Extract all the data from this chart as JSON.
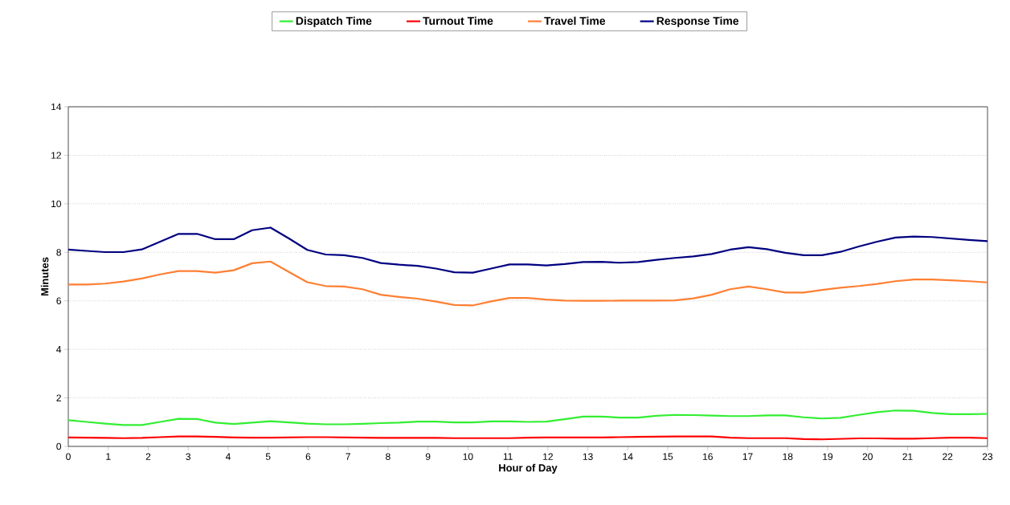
{
  "chart_data": {
    "type": "line",
    "xlabel": "Hour of Day",
    "ylabel": "Minutes",
    "x": [
      0,
      0.46,
      0.92,
      1.38,
      1.84,
      2.3,
      2.76,
      3.22,
      3.68,
      4.14,
      4.6,
      5.06,
      5.52,
      5.98,
      6.44,
      6.9,
      7.36,
      7.82,
      8.28,
      8.74,
      9.2,
      9.66,
      10.12,
      10.58,
      11.04,
      11.5,
      11.96,
      12.42,
      12.88,
      13.34,
      13.8,
      14.26,
      14.72,
      15.18,
      15.64,
      16.1,
      16.56,
      17.02,
      17.48,
      17.94,
      18.4,
      18.86,
      19.32,
      19.78,
      20.24,
      20.7,
      21.16,
      21.62,
      22.08,
      22.54,
      23
    ],
    "series": [
      {
        "name": "Dispatch Time",
        "color": "#33ee33",
        "values": [
          1.08,
          1.01,
          0.94,
          0.88,
          0.88,
          1.01,
          1.14,
          1.13,
          0.98,
          0.92,
          0.98,
          1.04,
          0.99,
          0.94,
          0.91,
          0.91,
          0.93,
          0.96,
          0.98,
          1.02,
          1.02,
          0.99,
          0.99,
          1.03,
          1.03,
          1.01,
          1.02,
          1.12,
          1.23,
          1.23,
          1.19,
          1.19,
          1.26,
          1.3,
          1.29,
          1.27,
          1.25,
          1.25,
          1.28,
          1.28,
          1.2,
          1.15,
          1.18,
          1.3,
          1.41,
          1.48,
          1.47,
          1.38,
          1.33,
          1.33,
          1.34
        ]
      },
      {
        "name": "Turnout Time",
        "color": "#ff0000",
        "values": [
          0.37,
          0.36,
          0.35,
          0.34,
          0.35,
          0.38,
          0.41,
          0.41,
          0.39,
          0.37,
          0.36,
          0.36,
          0.37,
          0.38,
          0.38,
          0.37,
          0.36,
          0.35,
          0.35,
          0.35,
          0.35,
          0.34,
          0.34,
          0.34,
          0.34,
          0.36,
          0.37,
          0.37,
          0.37,
          0.37,
          0.38,
          0.39,
          0.4,
          0.41,
          0.41,
          0.41,
          0.36,
          0.34,
          0.34,
          0.34,
          0.3,
          0.29,
          0.31,
          0.33,
          0.33,
          0.32,
          0.32,
          0.34,
          0.36,
          0.36,
          0.34
        ]
      },
      {
        "name": "Travel Time",
        "color": "#ff7f33",
        "values": [
          6.67,
          6.67,
          6.71,
          6.8,
          6.92,
          7.09,
          7.23,
          7.23,
          7.16,
          7.26,
          7.55,
          7.62,
          7.19,
          6.77,
          6.61,
          6.59,
          6.48,
          6.25,
          6.16,
          6.09,
          5.97,
          5.83,
          5.81,
          5.98,
          6.12,
          6.12,
          6.05,
          6.01,
          6.0,
          6.0,
          6.01,
          6.01,
          6.01,
          6.02,
          6.1,
          6.25,
          6.48,
          6.59,
          6.48,
          6.34,
          6.34,
          6.45,
          6.54,
          6.61,
          6.7,
          6.81,
          6.88,
          6.88,
          6.85,
          6.81,
          6.76
        ]
      },
      {
        "name": "Response Time",
        "color": "#000080",
        "values": [
          8.11,
          8.06,
          8.01,
          8.01,
          8.12,
          8.44,
          8.76,
          8.76,
          8.54,
          8.54,
          8.91,
          9.02,
          8.57,
          8.1,
          7.91,
          7.88,
          7.77,
          7.56,
          7.49,
          7.44,
          7.33,
          7.18,
          7.16,
          7.33,
          7.5,
          7.5,
          7.46,
          7.52,
          7.6,
          7.61,
          7.57,
          7.6,
          7.69,
          7.77,
          7.83,
          7.93,
          8.11,
          8.21,
          8.13,
          7.98,
          7.88,
          7.88,
          8.02,
          8.24,
          8.44,
          8.61,
          8.65,
          8.63,
          8.57,
          8.51,
          8.46
        ]
      }
    ],
    "xlim": [
      0,
      23
    ],
    "xticks": [
      0,
      1,
      2,
      3,
      4,
      5,
      6,
      7,
      8,
      9,
      10,
      11,
      12,
      13,
      14,
      15,
      16,
      17,
      18,
      19,
      20,
      21,
      22,
      23
    ],
    "ylim": [
      0,
      14
    ],
    "yticks": [
      0,
      2,
      4,
      6,
      8,
      10,
      12,
      14
    ],
    "grid": "y",
    "legend": "top",
    "marker": "none",
    "line_style": "solid"
  }
}
